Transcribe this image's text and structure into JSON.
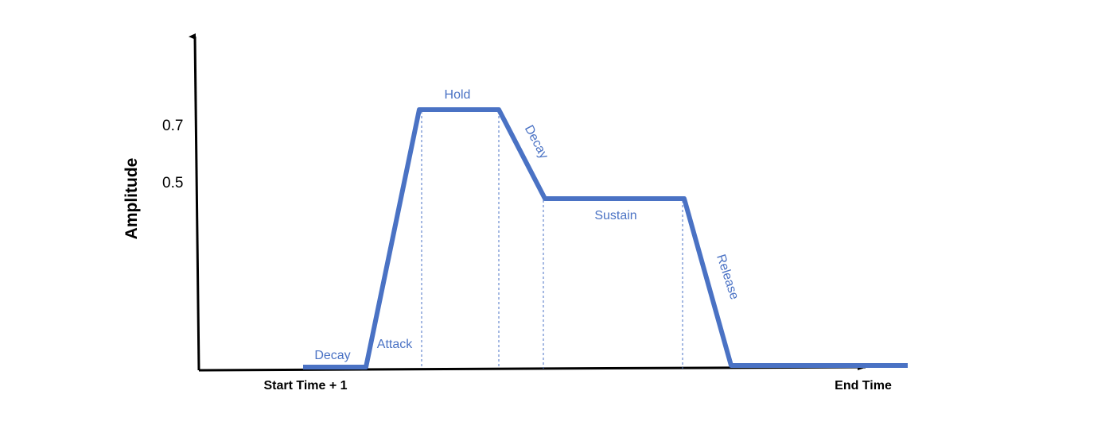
{
  "diagram": {
    "y_axis_title": "Amplitude",
    "y_ticks": [
      "0.7",
      "0.5"
    ],
    "x_labels": {
      "start": "Start Time + 1",
      "end": "End Time"
    },
    "phases": {
      "decay_initial": "Decay",
      "attack": "Attack",
      "hold": "Hold",
      "decay": "Decay",
      "sustain": "Sustain",
      "release": "Release"
    },
    "colors": {
      "envelope": "#4a72c4",
      "axis": "#000000"
    }
  }
}
